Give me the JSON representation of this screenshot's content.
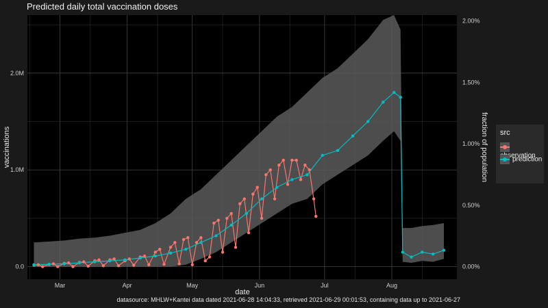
{
  "chart_data": {
    "type": "line",
    "title": "Predicted daily total vaccination doses",
    "xlabel": "date",
    "ylabel": "vaccinations",
    "y2label": "fraction of population",
    "x_tick_labels": [
      "Mar",
      "Apr",
      "May",
      "Jun",
      "Jul",
      "Aug"
    ],
    "y_tick_labels": [
      "0.0",
      "1.0M",
      "2.0M"
    ],
    "y2_tick_labels": [
      "0.00%",
      "0.50%",
      "1.00%",
      "1.50%",
      "2.00%"
    ],
    "legend": {
      "title": "src",
      "position": "right"
    },
    "grid": true,
    "xlim": [
      "2021-02-14",
      "2021-08-31"
    ],
    "ylim": [
      -130000,
      2600000
    ],
    "series": [
      {
        "name": "observation",
        "color": "#f8766d",
        "x": [
          "2021-02-17",
          "2021-02-19",
          "2021-02-21",
          "2021-02-24",
          "2021-02-26",
          "2021-02-28",
          "2021-03-03",
          "2021-03-05",
          "2021-03-07",
          "2021-03-10",
          "2021-03-12",
          "2021-03-14",
          "2021-03-17",
          "2021-03-19",
          "2021-03-21",
          "2021-03-24",
          "2021-03-26",
          "2021-03-28",
          "2021-03-31",
          "2021-04-02",
          "2021-04-04",
          "2021-04-07",
          "2021-04-09",
          "2021-04-11",
          "2021-04-14",
          "2021-04-16",
          "2021-04-18",
          "2021-04-21",
          "2021-04-23",
          "2021-04-25",
          "2021-04-27",
          "2021-04-29",
          "2021-05-01",
          "2021-05-03",
          "2021-05-05",
          "2021-05-07",
          "2021-05-09",
          "2021-05-11",
          "2021-05-13",
          "2021-05-15",
          "2021-05-17",
          "2021-05-19",
          "2021-05-21",
          "2021-05-23",
          "2021-05-25",
          "2021-05-27",
          "2021-05-29",
          "2021-05-31",
          "2021-06-02",
          "2021-06-04",
          "2021-06-06",
          "2021-06-08",
          "2021-06-10",
          "2021-06-12",
          "2021-06-14",
          "2021-06-16",
          "2021-06-18",
          "2021-06-20",
          "2021-06-22",
          "2021-06-24",
          "2021-06-26",
          "2021-06-27"
        ],
        "values": [
          15000,
          20000,
          0,
          22000,
          30000,
          0,
          35000,
          40000,
          0,
          45000,
          50000,
          5000,
          60000,
          70000,
          10000,
          70000,
          80000,
          10000,
          60000,
          80000,
          15000,
          100000,
          110000,
          20000,
          150000,
          180000,
          25000,
          200000,
          250000,
          30000,
          280000,
          300000,
          20000,
          250000,
          300000,
          60000,
          100000,
          450000,
          480000,
          150000,
          500000,
          550000,
          200000,
          650000,
          700000,
          350000,
          750000,
          820000,
          500000,
          950000,
          1000000,
          700000,
          1050000,
          1100000,
          850000,
          1100000,
          1100000,
          900000,
          1050000,
          1000000,
          700000,
          520000
        ]
      },
      {
        "name": "prediction",
        "color": "#00bfc4",
        "x": [
          "2021-02-17",
          "2021-02-24",
          "2021-03-03",
          "2021-03-10",
          "2021-03-17",
          "2021-03-24",
          "2021-03-31",
          "2021-04-07",
          "2021-04-14",
          "2021-04-21",
          "2021-04-28",
          "2021-05-05",
          "2021-05-12",
          "2021-05-19",
          "2021-05-26",
          "2021-06-02",
          "2021-06-09",
          "2021-06-16",
          "2021-06-23",
          "2021-06-30",
          "2021-07-07",
          "2021-07-14",
          "2021-07-21",
          "2021-07-28",
          "2021-08-02",
          "2021-08-05",
          "2021-08-06",
          "2021-08-10",
          "2021-08-15",
          "2021-08-20",
          "2021-08-25"
        ],
        "values": [
          20000,
          25000,
          30000,
          40000,
          50000,
          60000,
          70000,
          90000,
          110000,
          140000,
          180000,
          250000,
          320000,
          430000,
          550000,
          700000,
          820000,
          900000,
          950000,
          1150000,
          1200000,
          1350000,
          1500000,
          1700000,
          1800000,
          1750000,
          150000,
          100000,
          150000,
          130000,
          170000
        ],
        "band_low": [
          0,
          0,
          0,
          0,
          0,
          0,
          0,
          0,
          0,
          0,
          20000,
          80000,
          150000,
          250000,
          350000,
          450000,
          550000,
          650000,
          700000,
          850000,
          950000,
          1050000,
          1150000,
          1300000,
          1400000,
          1300000,
          50000,
          40000,
          60000,
          50000,
          80000
        ],
        "band_high": [
          250000,
          260000,
          270000,
          290000,
          300000,
          320000,
          350000,
          380000,
          450000,
          550000,
          700000,
          800000,
          950000,
          1100000,
          1250000,
          1400000,
          1550000,
          1650000,
          1800000,
          1950000,
          2050000,
          2200000,
          2350000,
          2550000,
          2600000,
          2450000,
          400000,
          400000,
          420000,
          430000,
          450000
        ]
      }
    ]
  },
  "footer": "datasource: MHLW+Kantei data dated 2021-06-28 14:04:33, retrieved 2021-06-29 00:01:53, containing data up to 2021-06-27"
}
